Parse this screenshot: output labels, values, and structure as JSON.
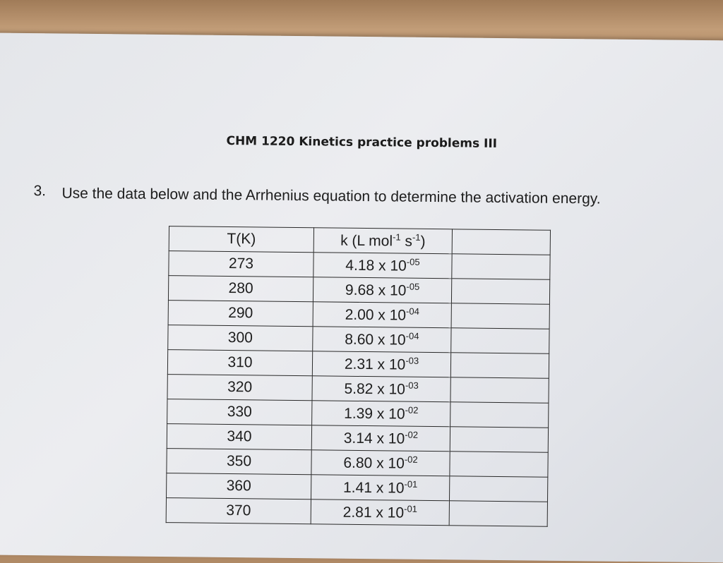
{
  "header": {
    "title": "CHM 1220 Kinetics practice problems III"
  },
  "question": {
    "number": "3.",
    "text": "Use the data below and the Arrhenius equation to determine the activation energy."
  },
  "table": {
    "headers": [
      [
        {
          "text": "T(K)"
        }
      ],
      [
        {
          "text": "k (L mol"
        },
        {
          "text": "-1",
          "sup": true
        },
        {
          "text": " s"
        },
        {
          "text": "-1",
          "sup": true
        },
        {
          "text": ")"
        }
      ]
    ],
    "rows": [
      {
        "t": "273",
        "k": "4.18 x 10",
        "exp": "-05"
      },
      {
        "t": "280",
        "k": "9.68 x 10",
        "exp": "-05"
      },
      {
        "t": "290",
        "k": "2.00 x 10",
        "exp": "-04"
      },
      {
        "t": "300",
        "k": "8.60 x 10",
        "exp": "-04"
      },
      {
        "t": "310",
        "k": "2.31 x 10",
        "exp": "-03"
      },
      {
        "t": "320",
        "k": "5.82 x 10",
        "exp": "-03"
      },
      {
        "t": "330",
        "k": "1.39 x 10",
        "exp": "-02"
      },
      {
        "t": "340",
        "k": "3.14 x 10",
        "exp": "-02"
      },
      {
        "t": "350",
        "k": "6.80 x 10",
        "exp": "-02"
      },
      {
        "t": "360",
        "k": "1.41 x 10",
        "exp": "-01"
      },
      {
        "t": "370",
        "k": "2.81 x 10",
        "exp": "-01"
      }
    ]
  }
}
